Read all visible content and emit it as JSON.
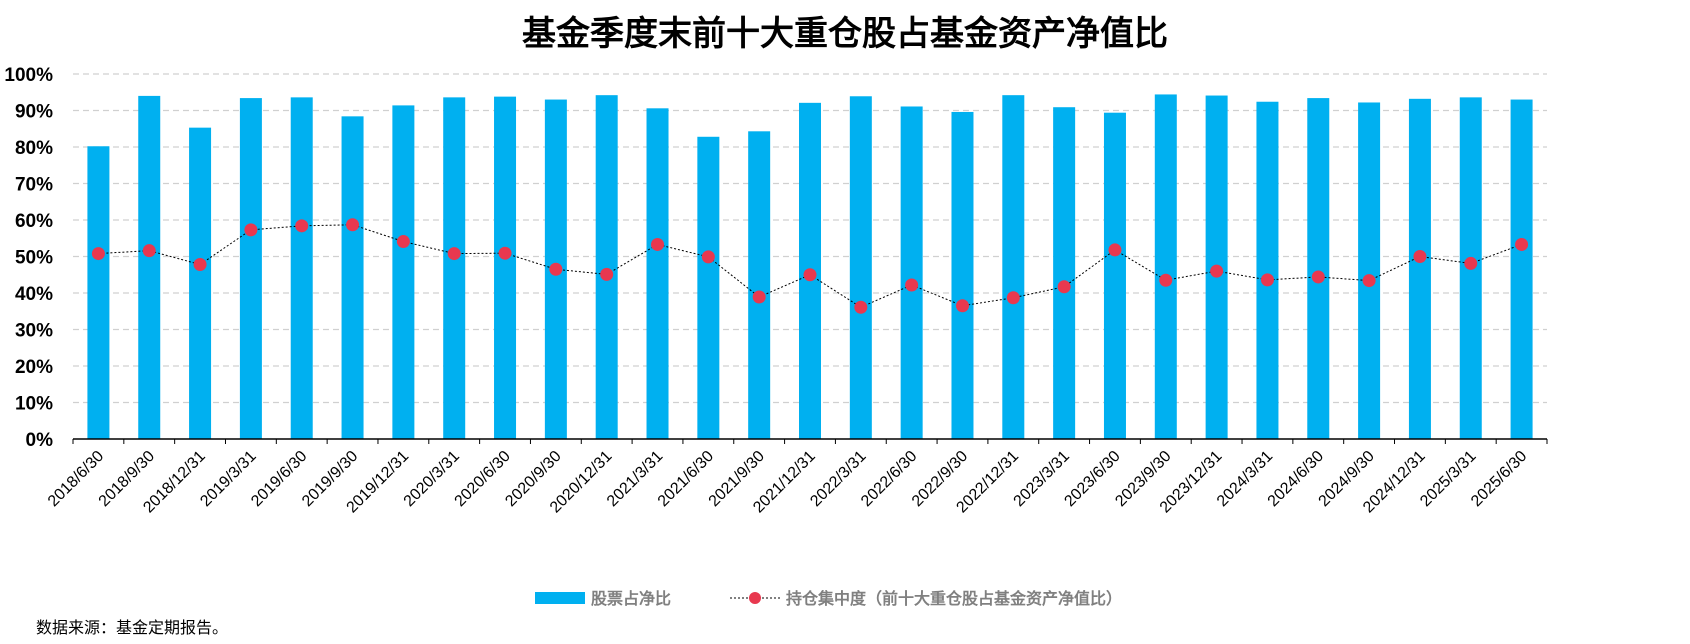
{
  "chart_data": {
    "type": "bar",
    "title": "基金季度末前十大重仓股占基金资产净值比",
    "ylim": [
      0,
      100
    ],
    "y_ticks": [
      "0%",
      "10%",
      "20%",
      "30%",
      "40%",
      "50%",
      "60%",
      "70%",
      "80%",
      "90%",
      "100%"
    ],
    "grid": "horizontal dashed",
    "legend_position": "bottom-center",
    "categories": [
      "2018/6/30",
      "2018/9/30",
      "2018/12/31",
      "2019/3/31",
      "2019/6/30",
      "2019/9/30",
      "2019/12/31",
      "2020/3/31",
      "2020/6/30",
      "2020/9/30",
      "2020/12/31",
      "2021/3/31",
      "2021/6/30",
      "2021/9/30",
      "2021/12/31",
      "2022/3/31",
      "2022/6/30",
      "2022/9/30",
      "2022/12/31",
      "2023/3/31",
      "2023/6/30",
      "2023/9/30",
      "2023/12/31",
      "2024/3/31",
      "2024/6/30",
      "2024/9/30",
      "2024/12/31",
      "2025/3/31",
      "2025/6/30"
    ],
    "series": [
      {
        "name": "股票占净比",
        "type": "bar",
        "color": "#00B0F0",
        "values": [
          80.2,
          94.0,
          85.3,
          93.4,
          93.6,
          88.4,
          91.4,
          93.6,
          93.8,
          93.0,
          94.2,
          90.6,
          82.8,
          84.3,
          92.1,
          93.9,
          91.1,
          89.6,
          94.2,
          90.9,
          89.4,
          94.4,
          94.1,
          92.4,
          93.4,
          92.2,
          93.2,
          93.6,
          93.0
        ]
      },
      {
        "name": "持仓集中度（前十大重仓股占基金资产净值比）",
        "type": "line",
        "color": "#E8384F",
        "line_color": "#000000",
        "values": [
          50.8,
          51.6,
          47.8,
          57.3,
          58.4,
          58.7,
          54.1,
          50.8,
          50.9,
          46.5,
          45.1,
          53.3,
          49.9,
          38.9,
          45.0,
          36.1,
          42.2,
          36.5,
          38.7,
          41.7,
          51.8,
          43.5,
          46.0,
          43.6,
          44.4,
          43.4,
          50.0,
          48.1,
          53.3
        ]
      }
    ]
  },
  "source_note": "数据来源：基金定期报告。"
}
